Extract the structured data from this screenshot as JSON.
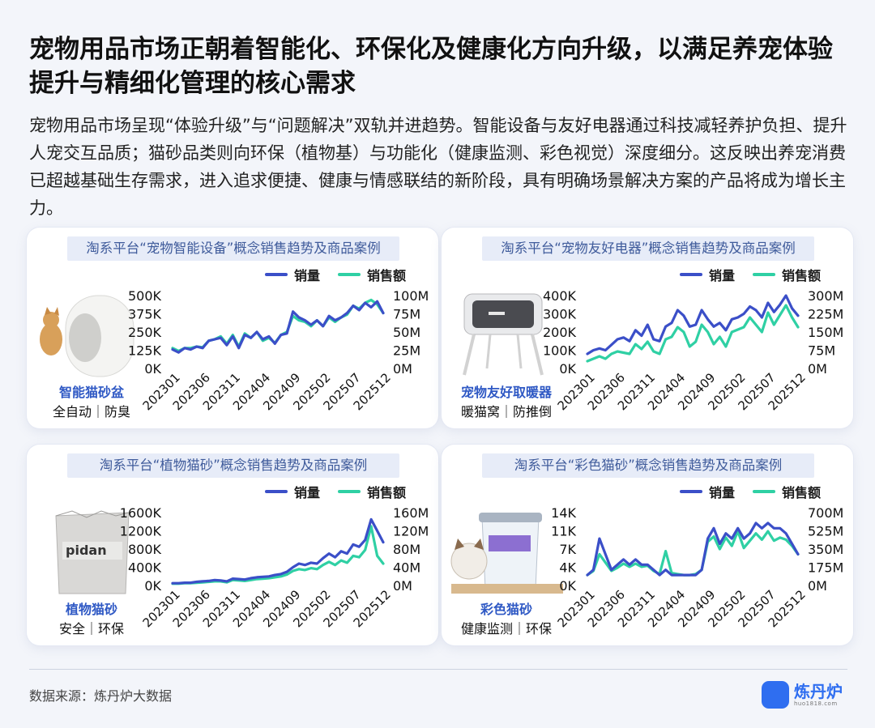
{
  "header": {
    "title": "宠物用品市场正朝着智能化、环保化及健康化方向升级，以满足养宠体验提升与精细化管理的核心需求",
    "description": "宠物用品市场呈现“体验升级”与“问题解决”双轨并进趋势。智能设备与友好电器通过科技减轻养护负担、提升人宠交互品质；猫砂品类则向环保（植物基）与功能化（健康监测、彩色视觉）深度细分。这反映出养宠消费已超越基础生存需求，进入追求便捷、健康与情感联结的新阶段，具有明确场景解决方案的产品将成为增长主力。"
  },
  "legend": {
    "volume": "销量",
    "revenue": "销售额"
  },
  "colors": {
    "volume": "#3b4fc8",
    "revenue": "#2fd0a4",
    "tick": "#111111"
  },
  "cards": [
    {
      "title": "淘系平台“宠物智能设备”概念销售趋势及商品案例",
      "product": "智能猫砂盆",
      "tags": "全自动｜防臭",
      "image_icon": "smart-litter-box"
    },
    {
      "title": "淘系平台“宠物友好电器”概念销售趋势及商品案例",
      "product": "宠物友好取暖器",
      "tags": "暖猫窝｜防推倒",
      "image_icon": "pet-heater"
    },
    {
      "title": "淘系平台“植物猫砂”概念销售趋势及商品案例",
      "product": "植物猫砂",
      "tags": "安全｜环保",
      "image_icon": "plant-litter-bag"
    },
    {
      "title": "淘系平台“彩色猫砂”概念销售趋势及商品案例",
      "product": "彩色猫砂",
      "tags": "健康监测｜环保",
      "image_icon": "color-litter-bucket"
    }
  ],
  "chart_data": [
    {
      "type": "line",
      "x_ticks": [
        "202301",
        "202306",
        "202311",
        "202404",
        "202409",
        "202502",
        "202507",
        "202512"
      ],
      "y_left": {
        "ticks": [
          "0K",
          "125K",
          "250K",
          "375K",
          "500K"
        ],
        "lim": [
          0,
          500
        ]
      },
      "y_right": {
        "ticks": [
          "0M",
          "25M",
          "50M",
          "75M",
          "100M"
        ],
        "lim": [
          0,
          100
        ]
      },
      "series": [
        {
          "name": "销量",
          "axis": "left",
          "values": [
            130,
            110,
            140,
            130,
            150,
            140,
            190,
            200,
            210,
            160,
            220,
            140,
            230,
            210,
            250,
            200,
            220,
            170,
            230,
            240,
            390,
            350,
            330,
            300,
            330,
            290,
            360,
            330,
            350,
            380,
            430,
            400,
            450,
            420,
            460,
            380
          ]
        },
        {
          "name": "销售额",
          "axis": "right",
          "values": [
            28,
            24,
            28,
            28,
            30,
            29,
            38,
            40,
            44,
            34,
            46,
            30,
            48,
            42,
            50,
            38,
            42,
            35,
            46,
            50,
            72,
            66,
            64,
            58,
            66,
            58,
            70,
            64,
            70,
            74,
            86,
            82,
            90,
            94,
            88,
            76
          ]
        }
      ]
    },
    {
      "type": "line",
      "x_ticks": [
        "202301",
        "202306",
        "202311",
        "202404",
        "202409",
        "202502",
        "202507",
        "202512"
      ],
      "y_left": {
        "ticks": [
          "0K",
          "100K",
          "200K",
          "300K",
          "400K"
        ],
        "lim": [
          0,
          400
        ]
      },
      "y_right": {
        "ticks": [
          "0M",
          "75M",
          "150M",
          "225M",
          "300M"
        ],
        "lim": [
          0,
          300
        ]
      },
      "series": [
        {
          "name": "销量",
          "axis": "left",
          "values": [
            80,
            100,
            110,
            100,
            130,
            160,
            170,
            150,
            210,
            180,
            240,
            160,
            150,
            230,
            250,
            320,
            290,
            230,
            240,
            320,
            270,
            230,
            250,
            210,
            270,
            280,
            300,
            340,
            320,
            280,
            360,
            310,
            350,
            400,
            330,
            290
          ]
        },
        {
          "name": "销售额",
          "axis": "right",
          "values": [
            30,
            40,
            50,
            40,
            60,
            70,
            65,
            60,
            100,
            80,
            110,
            70,
            60,
            120,
            130,
            170,
            150,
            90,
            110,
            180,
            150,
            100,
            130,
            90,
            150,
            160,
            170,
            210,
            180,
            150,
            230,
            180,
            220,
            260,
            210,
            170
          ]
        }
      ]
    },
    {
      "type": "line",
      "x_ticks": [
        "202301",
        "202306",
        "202311",
        "202404",
        "202409",
        "202502",
        "202507",
        "202512"
      ],
      "y_left": {
        "ticks": [
          "0K",
          "400K",
          "800K",
          "1200K",
          "1600K"
        ],
        "lim": [
          0,
          1600
        ]
      },
      "y_right": {
        "ticks": [
          "0M",
          "40M",
          "80M",
          "120M",
          "160M"
        ],
        "lim": [
          0,
          160
        ]
      },
      "series": [
        {
          "name": "销量",
          "axis": "left",
          "values": [
            50,
            50,
            60,
            60,
            80,
            90,
            100,
            120,
            110,
            90,
            150,
            140,
            130,
            160,
            180,
            190,
            200,
            230,
            250,
            300,
            400,
            480,
            450,
            500,
            480,
            600,
            700,
            620,
            750,
            700,
            900,
            850,
            1000,
            1450,
            1200,
            950
          ]
        },
        {
          "name": "销售额",
          "axis": "right",
          "values": [
            4,
            4,
            5,
            5,
            6,
            7,
            8,
            9,
            9,
            7,
            12,
            11,
            10,
            12,
            14,
            15,
            16,
            18,
            20,
            24,
            32,
            36,
            34,
            38,
            36,
            45,
            52,
            45,
            55,
            50,
            65,
            62,
            78,
            130,
            65,
            48
          ]
        }
      ]
    },
    {
      "type": "line",
      "x_ticks": [
        "202301",
        "202306",
        "202311",
        "202404",
        "202409",
        "202502",
        "202507",
        "202512"
      ],
      "y_left": {
        "ticks": [
          "0K",
          "4K",
          "7K",
          "11K",
          "14K"
        ],
        "lim": [
          0,
          14
        ]
      },
      "y_right": {
        "ticks": [
          "0M",
          "175M",
          "350M",
          "525M",
          "700M"
        ],
        "lim": [
          0,
          700
        ]
      },
      "series": [
        {
          "name": "销量",
          "axis": "left",
          "values": [
            2,
            3,
            9,
            6,
            3,
            4,
            5,
            4,
            5,
            4,
            4,
            3,
            2,
            3,
            2,
            2,
            2,
            2,
            2,
            3,
            9,
            11,
            8,
            10,
            9,
            11,
            9,
            10,
            12,
            11,
            12,
            11,
            11,
            10,
            8,
            6
          ]
        },
        {
          "name": "销售额",
          "axis": "right",
          "values": [
            100,
            140,
            300,
            220,
            140,
            170,
            210,
            180,
            210,
            180,
            190,
            140,
            110,
            330,
            120,
            110,
            100,
            100,
            110,
            150,
            420,
            470,
            350,
            460,
            380,
            520,
            360,
            430,
            500,
            440,
            520,
            430,
            460,
            440,
            380,
            300
          ]
        }
      ]
    }
  ],
  "footer": {
    "source": "数据来源：炼丹炉大数据",
    "logo_name": "炼丹炉",
    "logo_url": "huo1818.com"
  }
}
